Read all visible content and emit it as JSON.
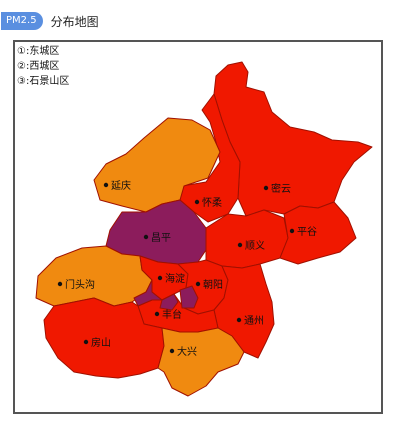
{
  "header": {
    "badge": "PM2.5",
    "title": "分布地图"
  },
  "legend": [
    {
      "num": "①:",
      "label": "东城区"
    },
    {
      "num": "②:",
      "label": "西城区"
    },
    {
      "num": "③:",
      "label": "石景山区"
    }
  ],
  "colors": {
    "badge": "#5a8fe0",
    "red": "#f01800",
    "red_dark": "#e01000",
    "orange": "#f08a10",
    "purple": "#8c1c5c",
    "border": "#555555"
  },
  "districts": {
    "yanqing": "延庆",
    "huairou": "怀柔",
    "miyun": "密云",
    "changping": "昌平",
    "shunyi": "顺义",
    "pinggu": "平谷",
    "mentougou": "门头沟",
    "haidian": "海淀",
    "chaoyang": "朝阳",
    "fengtai": "丰台",
    "tongzhou": "通州",
    "fangshan": "房山",
    "daxing": "大兴"
  },
  "district_levels": {
    "yanqing": "orange",
    "huairou": "red",
    "miyun": "red",
    "changping": "purple",
    "shunyi": "red",
    "pinggu": "red",
    "mentougou": "orange",
    "haidian": "red",
    "chaoyang": "red",
    "fengtai": "red",
    "tongzhou": "red",
    "fangshan": "red",
    "daxing": "orange",
    "dongcheng": "purple",
    "xicheng": "purple",
    "shijingshan": "purple"
  }
}
